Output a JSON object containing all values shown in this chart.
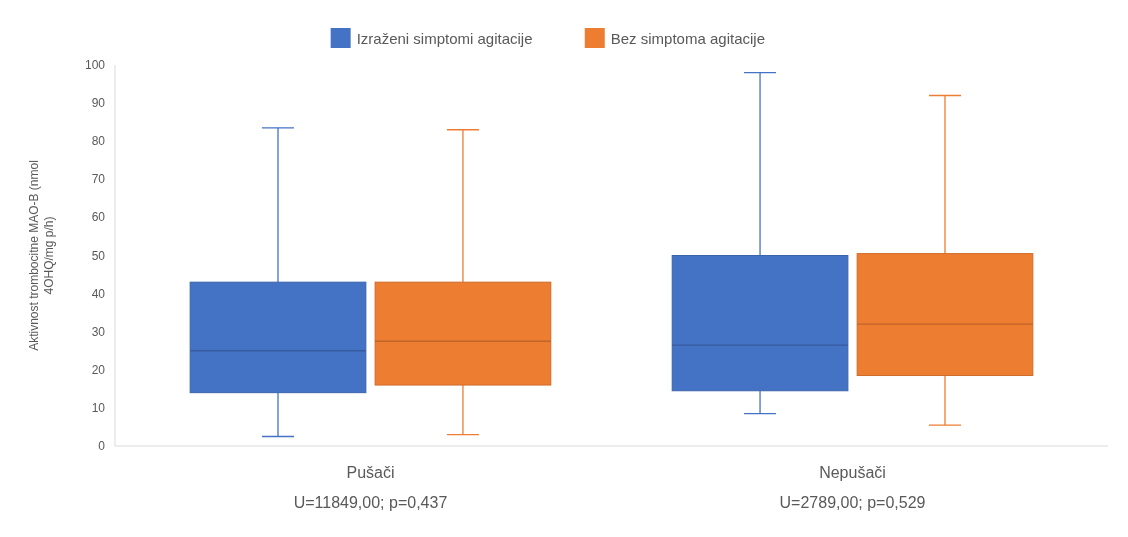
{
  "chart_data": {
    "type": "box",
    "categories": [
      "Pušači",
      "Nepušači"
    ],
    "ylabel": "Aktivnost trombocitne MAO-B (nmol\n4OHQ/mg p/h)",
    "ylim": [
      0,
      100
    ],
    "yticks": [
      0,
      10,
      20,
      30,
      40,
      50,
      60,
      70,
      80,
      90,
      100
    ],
    "grid": false,
    "legend": "top",
    "series": [
      {
        "name": "Izraženi simptomi agitacije",
        "color": "#4472c4",
        "boxes": [
          {
            "low": 2.5,
            "q1": 14,
            "median": 25,
            "q3": 43,
            "high": 83.5
          },
          {
            "low": 8.5,
            "q1": 14.5,
            "median": 26.5,
            "q3": 50,
            "high": 98
          }
        ]
      },
      {
        "name": "Bez simptoma agitacije",
        "color": "#ed7d31",
        "boxes": [
          {
            "low": 3,
            "q1": 16,
            "median": 27.5,
            "q3": 43,
            "high": 83
          },
          {
            "low": 5.5,
            "q1": 18.5,
            "median": 32,
            "q3": 50.5,
            "high": 92
          }
        ]
      }
    ],
    "annotations": [
      "U=11849,00; p=0,437",
      "U=2789,00; p=0,529"
    ]
  }
}
